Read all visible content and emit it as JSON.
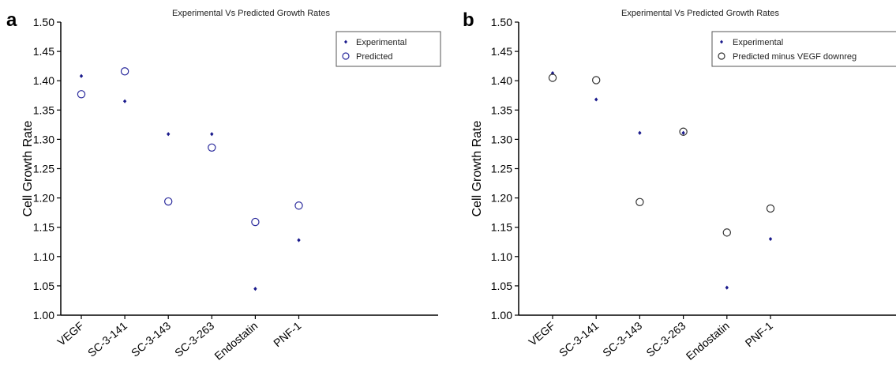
{
  "colors": {
    "experimental": "#1a1a8c",
    "predicted_a": "#2a2a9c",
    "predicted_b": "#333333",
    "axis": "#000000"
  },
  "chart_data": [
    {
      "type": "scatter",
      "panel_label": "a",
      "title": "Experimental Vs Predicted Growth Rates",
      "xlabel": "",
      "ylabel": "Cell Growth Rate",
      "categories": [
        "VEGF",
        "SC-3-141",
        "SC-3-143",
        "SC-3-263",
        "Endostatin",
        "PNF-1"
      ],
      "ylim": [
        1.0,
        1.5
      ],
      "yticks": [
        "1.00",
        "1.05",
        "1.10",
        "1.15",
        "1.20",
        "1.25",
        "1.30",
        "1.35",
        "1.40",
        "1.45",
        "1.50"
      ],
      "grid": false,
      "legend_position": "top-right",
      "series": [
        {
          "name": "Experimental",
          "marker": "diamond",
          "values": [
            1.408,
            1.365,
            1.309,
            1.309,
            1.045,
            1.128
          ]
        },
        {
          "name": "Predicted",
          "marker": "circle",
          "values": [
            1.377,
            1.416,
            1.194,
            1.286,
            1.159,
            1.187
          ]
        }
      ]
    },
    {
      "type": "scatter",
      "panel_label": "b",
      "title": "Experimental Vs Predicted Growth Rates",
      "xlabel": "",
      "ylabel": "Cell Growth Rate",
      "categories": [
        "VEGF",
        "SC-3-141",
        "SC-3-143",
        "SC-3-263",
        "Endostatin",
        "PNF-1"
      ],
      "ylim": [
        1.0,
        1.5
      ],
      "yticks": [
        "1.00",
        "1.05",
        "1.10",
        "1.15",
        "1.20",
        "1.25",
        "1.30",
        "1.35",
        "1.40",
        "1.45",
        "1.50"
      ],
      "grid": false,
      "legend_position": "top-right",
      "series": [
        {
          "name": "Experimental",
          "marker": "diamond",
          "values": [
            1.413,
            1.368,
            1.311,
            1.311,
            1.047,
            1.13
          ]
        },
        {
          "name": "Predicted minus VEGF downreg",
          "marker": "circle",
          "values": [
            1.405,
            1.401,
            1.193,
            1.313,
            1.141,
            1.182
          ]
        }
      ]
    }
  ]
}
